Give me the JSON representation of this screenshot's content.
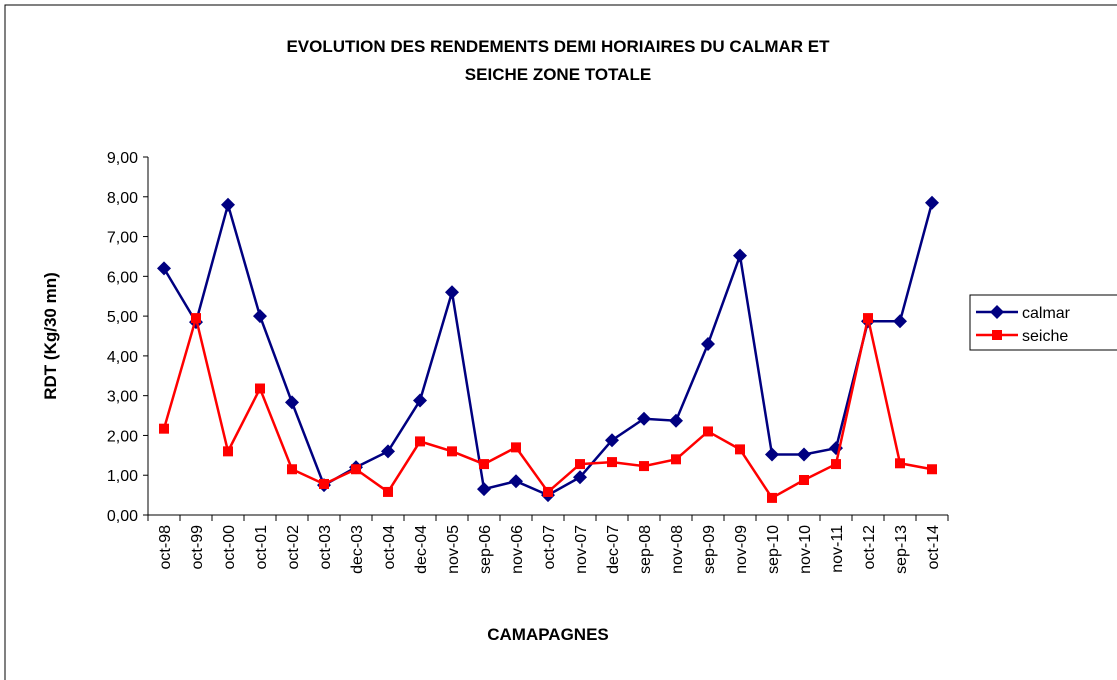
{
  "chart_data": {
    "type": "line",
    "title": [
      "EVOLUTION DES RENDEMENTS DEMI HORIAIRES DU CALMAR ET",
      "SEICHE  ZONE TOTALE"
    ],
    "x_label": "CAMAPAGNES",
    "y_label": "RDT (Kg/30 mn)",
    "categories": [
      "oct-98",
      "oct-99",
      "oct-00",
      "oct-01",
      "oct-02",
      "oct-03",
      "dec-03",
      "oct-04",
      "dec-04",
      "nov-05",
      "sep-06",
      "nov-06",
      "oct-07",
      "nov-07",
      "dec-07",
      "sep-08",
      "nov-08",
      "sep-09",
      "nov-09",
      "sep-10",
      "nov-10",
      "nov-11",
      "oct-12",
      "sep-13",
      "oct-14"
    ],
    "series": [
      {
        "name": "calmar",
        "color": "#000080",
        "marker": "diamond",
        "values": [
          6.2,
          4.85,
          7.8,
          5.0,
          2.83,
          0.75,
          1.2,
          1.6,
          2.88,
          5.6,
          0.65,
          0.85,
          0.5,
          0.95,
          1.88,
          2.42,
          2.37,
          4.3,
          6.52,
          1.52,
          1.52,
          1.68,
          4.87,
          4.87,
          7.85
        ]
      },
      {
        "name": "seiche",
        "color": "#ff0000",
        "marker": "square",
        "values": [
          2.17,
          4.95,
          1.6,
          3.18,
          1.15,
          0.78,
          1.15,
          0.58,
          1.85,
          1.6,
          1.28,
          1.7,
          0.58,
          1.28,
          1.33,
          1.23,
          1.4,
          2.1,
          1.65,
          0.43,
          0.88,
          1.28,
          4.95,
          1.3,
          1.15
        ]
      }
    ],
    "ylim": [
      0,
      9
    ],
    "yticks": [
      {
        "value": 0,
        "label": "0,00"
      },
      {
        "value": 1,
        "label": "1,00"
      },
      {
        "value": 2,
        "label": "2,00"
      },
      {
        "value": 3,
        "label": "3,00"
      },
      {
        "value": 4,
        "label": "4,00"
      },
      {
        "value": 5,
        "label": "5,00"
      },
      {
        "value": 6,
        "label": "6,00"
      },
      {
        "value": 7,
        "label": "7,00"
      },
      {
        "value": 8,
        "label": "8,00"
      },
      {
        "value": 9,
        "label": "9,00"
      }
    ],
    "grid": false,
    "legend": "right"
  }
}
